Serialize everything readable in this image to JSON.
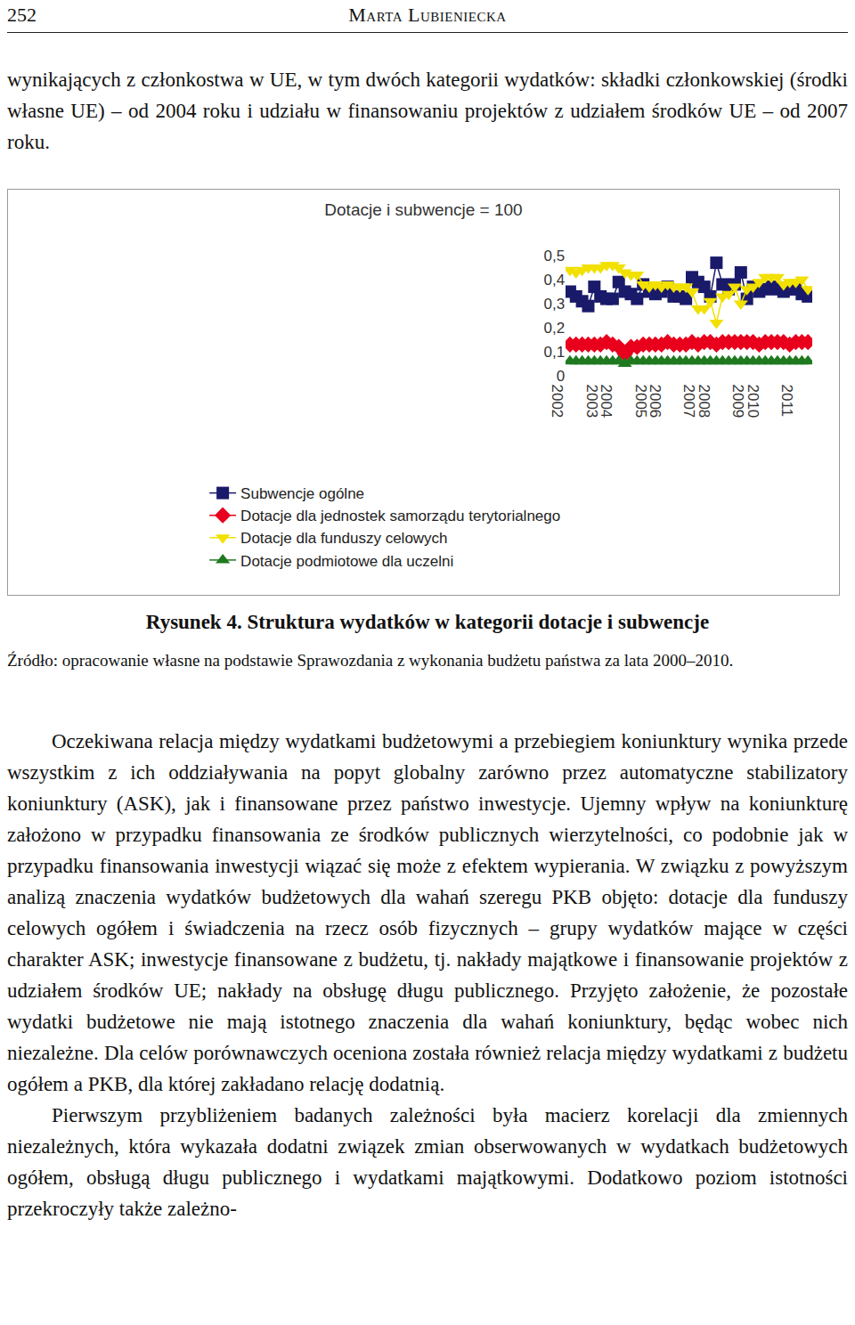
{
  "header": {
    "page": "252",
    "author": "Marta Lubieniecka"
  },
  "paragraph_before": "wynikających z członkostwa w UE, w tym dwóch kategorii wydatków: składki członkowskiej (środki własne UE) – od 2004 roku i udziału w finansowaniu projektów z udziałem środków UE – od 2007 roku.",
  "chart_data": {
    "type": "line",
    "title": "Dotacje i subwencje = 100",
    "categories": [
      "2002",
      null,
      null,
      null,
      "2003",
      null,
      null,
      null,
      "2004",
      null,
      null,
      null,
      "2005",
      null,
      null,
      null,
      "2006",
      null,
      null,
      null,
      "2007",
      null,
      null,
      null,
      "2008",
      null,
      null,
      null,
      "2009",
      null,
      null,
      null,
      "2010",
      null,
      null,
      null,
      "2011",
      null,
      null,
      null
    ],
    "ylim": [
      0,
      0.5
    ],
    "yticks": [
      0,
      {
        "value": 0.1,
        "label": "0,1"
      },
      {
        "value": 0.2,
        "label": "0,2"
      },
      {
        "value": 0.3,
        "label": "0,3"
      },
      {
        "value": 0.4,
        "label": "0,4"
      },
      {
        "value": 0.5,
        "label": "0,5"
      }
    ],
    "grid": false,
    "legend": "bottom",
    "series": [
      {
        "name": "Subwencje ogólne",
        "color": "#1a1a6b",
        "marker": "square",
        "line_style": "solid",
        "values": [
          0.35,
          0.33,
          0.31,
          0.29,
          0.37,
          0.33,
          0.32,
          0.32,
          0.39,
          0.35,
          0.34,
          0.32,
          0.38,
          0.35,
          0.34,
          0.35,
          0.37,
          0.33,
          0.33,
          0.32,
          0.41,
          0.39,
          0.37,
          0.33,
          0.47,
          0.38,
          0.36,
          0.38,
          0.43,
          0.32,
          0.37,
          0.35,
          0.36,
          0.37,
          0.36,
          0.35,
          0.36,
          0.36,
          0.34,
          0.33
        ]
      },
      {
        "name": "Dotacje dla jednostek samorządu terytorialnego",
        "color": "#e8001c",
        "marker": "diamond",
        "line_style": "solid",
        "values": [
          0.13,
          0.13,
          0.13,
          0.13,
          0.13,
          0.13,
          0.14,
          0.13,
          0.12,
          0.09,
          0.12,
          0.12,
          0.13,
          0.13,
          0.13,
          0.13,
          0.14,
          0.13,
          0.13,
          0.13,
          0.14,
          0.13,
          0.14,
          0.14,
          0.13,
          0.14,
          0.14,
          0.14,
          0.14,
          0.14,
          0.14,
          0.13,
          0.14,
          0.14,
          0.14,
          0.14,
          0.13,
          0.14,
          0.14,
          0.14
        ]
      },
      {
        "name": "Dotacje dla funduszy celowych",
        "color": "#f2e000",
        "marker": "triangle-down",
        "line_style": "solid",
        "values": [
          0.44,
          0.43,
          0.44,
          0.45,
          0.45,
          0.45,
          0.46,
          0.46,
          0.45,
          0.43,
          0.42,
          0.42,
          0.38,
          0.37,
          0.38,
          0.37,
          0.38,
          0.37,
          0.37,
          0.37,
          0.35,
          0.28,
          0.28,
          0.31,
          0.22,
          0.33,
          0.34,
          0.37,
          0.3,
          0.36,
          0.37,
          0.39,
          0.41,
          0.41,
          0.41,
          0.38,
          0.39,
          0.39,
          0.4,
          0.36
        ]
      },
      {
        "name": "Dotacje podmiotowe dla uczelni",
        "color": "#1f7a1f",
        "marker": "triangle-up",
        "line_style": "solid",
        "values": [
          0.06,
          0.06,
          0.06,
          0.06,
          0.06,
          0.06,
          0.06,
          0.06,
          0.06,
          0.05,
          0.06,
          0.06,
          0.06,
          0.06,
          0.06,
          0.06,
          0.06,
          0.06,
          0.06,
          0.06,
          0.06,
          0.06,
          0.06,
          0.06,
          0.06,
          0.06,
          0.06,
          0.06,
          0.06,
          0.06,
          0.06,
          0.06,
          0.06,
          0.06,
          0.06,
          0.06,
          0.06,
          0.06,
          0.06,
          0.06
        ]
      }
    ]
  },
  "caption": "Rysunek 4. Struktura wydatków w kategorii dotacje i subwencje",
  "source": "Źródło: opracowanie własne na podstawie Sprawozdania z wykonania budżetu państwa za lata 2000–2010.",
  "paragraphs_after": [
    "Oczekiwana relacja między wydatkami budżetowymi a przebiegiem koniunktury wynika przede wszystkim z ich oddziaływania na popyt globalny zarówno przez automatyczne stabilizatory koniunktury (ASK), jak i finansowane przez państwo inwestycje. Ujemny wpływ na koniunkturę założono w przypadku finansowania ze środków publicznych wierzytelności, co podobnie jak w przypadku finansowania inwestycji wiązać się może z efektem wypierania. W związku z powyższym analizą znaczenia wydatków budżetowych dla wahań szeregu PKB objęto: dotacje dla funduszy celowych ogółem i świadczenia na rzecz osób fizycznych – grupy wydatków mające w części charakter ASK; inwestycje finansowane z budżetu, tj. nakłady majątkowe i finansowanie projektów z udziałem środków UE; nakłady na obsługę długu publicznego. Przyjęto założenie, że pozostałe wydatki budżetowe nie mają istotnego znaczenia dla wahań koniunktury, będąc wobec nich niezależne. Dla celów porównawczych oceniona została również relacja między wydatkami z budżetu ogółem a PKB, dla której zakładano relację dodatnią.",
    "Pierwszym przybliżeniem badanych zależności była macierz korelacji dla zmiennych niezależnych, która wykazała dodatni związek zmian obserwowanych w wydatkach budżetowych ogółem, obsługą długu publicznego i wydatkami majątkowymi. Dodatkowo poziom istotności przekroczyły także zależno-"
  ]
}
